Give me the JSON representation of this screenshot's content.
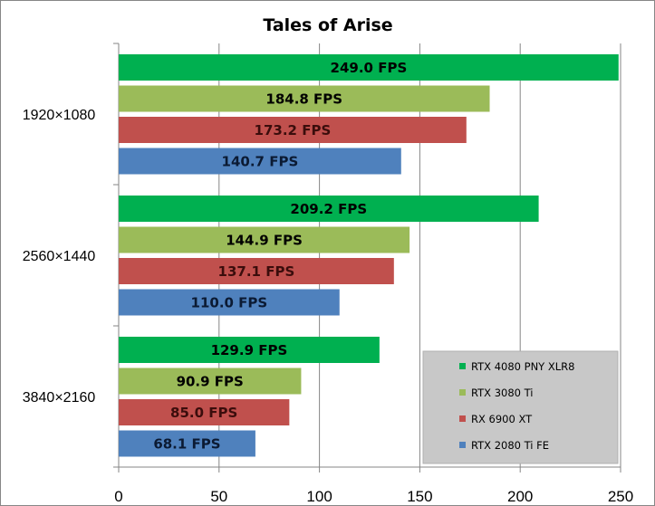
{
  "chart_data": {
    "type": "bar",
    "orientation": "horizontal",
    "title": "Tales of Arise",
    "categories": [
      "1920×1080",
      "2560×1440",
      "3840×2160"
    ],
    "series": [
      {
        "name": "RTX 4080 PNY XLR8",
        "color": "#00b050",
        "label_color": "#000000",
        "values": [
          249.0,
          209.2,
          129.9
        ],
        "labels": [
          "249.0 FPS",
          "209.2 FPS",
          "129.9 FPS"
        ]
      },
      {
        "name": "RTX 3080 Ti",
        "color": "#9bbb59",
        "label_color": "#000000",
        "values": [
          184.8,
          144.9,
          90.9
        ],
        "labels": [
          "184.8 FPS",
          "144.9 FPS",
          "90.9 FPS"
        ]
      },
      {
        "name": "RX 6900 XT",
        "color": "#c0504d",
        "label_color": "#3b0d0c",
        "values": [
          173.2,
          137.1,
          85.0
        ],
        "labels": [
          "173.2 FPS",
          "137.1 FPS",
          "85.0 FPS"
        ]
      },
      {
        "name": "RTX 2080 Ti FE",
        "color": "#4f81bd",
        "label_color": "#0b1a33",
        "values": [
          140.7,
          110.0,
          68.1
        ],
        "labels": [
          "140.7 FPS",
          "110.0 FPS",
          "68.1 FPS"
        ]
      }
    ],
    "xlim": [
      0,
      250
    ],
    "xticks": [
      0,
      50,
      100,
      150,
      200,
      250
    ],
    "xtick_labels": [
      "0",
      "50",
      "100",
      "150",
      "200",
      "250"
    ],
    "grid": true,
    "legend_position": "bottom-right",
    "legend_background": "#c8c8c8"
  }
}
